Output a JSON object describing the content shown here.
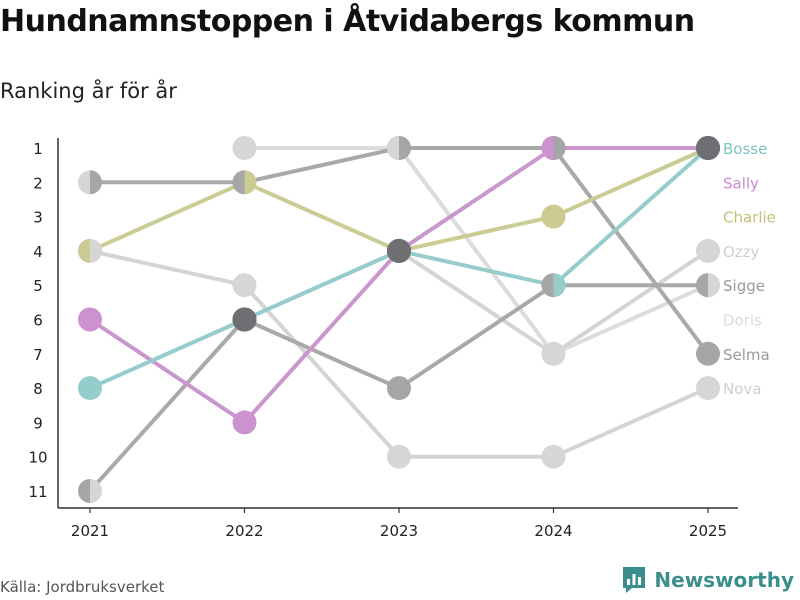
{
  "title": "Hundnamnstoppen i Åtvidabergs kommun",
  "subtitle": "Ranking år för år",
  "source": "Källa: Jordbruksverket",
  "brand": {
    "name": "Newsworthy",
    "icon": "newsworthy-logo-icon",
    "color": "#3a8f8c"
  },
  "chart_data": {
    "type": "line",
    "subtype": "bump",
    "title": "Hundnamnstoppen i Åtvidabergs kommun",
    "subtitle": "Ranking år för år",
    "x": [
      "2021",
      "2022",
      "2023",
      "2024",
      "2025"
    ],
    "y_ticks": [
      "1",
      "2",
      "3",
      "4",
      "5",
      "6",
      "7",
      "8",
      "9",
      "10",
      "11"
    ],
    "y_range": [
      1,
      11
    ],
    "y_inverted": true,
    "grid": false,
    "series": [
      {
        "name": "Nova",
        "color": "#d4d4d4",
        "ranks": [
          4,
          5,
          10,
          10,
          8
        ],
        "markers": [
          "split-lightgray-lightgray",
          "lightgray",
          "lightgray",
          "lightgray",
          "lightgray"
        ]
      },
      {
        "name": "Doris",
        "color": "#dcdcdc",
        "ranks": [
          null,
          1,
          1,
          7,
          5
        ],
        "markers": [
          null,
          "lightgray",
          "split-midgray-lightgray",
          "lightgray",
          "split-midgray-lightgray"
        ]
      },
      {
        "name": "Ozzy",
        "color": "#d4d4d4",
        "ranks": [
          null,
          6,
          4,
          7,
          4
        ],
        "markers": [
          null,
          "darkgray",
          "darkgray",
          "lightgray",
          "lightgray"
        ]
      },
      {
        "name": "Sigge",
        "color": "#a9a9a9",
        "ranks": [
          11,
          6,
          8,
          5,
          5
        ],
        "markers": [
          "split-midgray-lightgray",
          "darkgray",
          "midgray",
          "split-midgray-teal",
          "split-midgray-lightgray"
        ]
      },
      {
        "name": "Selma",
        "color": "#a9a9a9",
        "ranks": [
          2,
          2,
          1,
          1,
          7
        ],
        "markers": [
          "split-lightgray-midgray",
          "split-midgray-olive",
          "split-lightgray-midgray",
          "split-pink-midgray",
          "midgray"
        ]
      },
      {
        "name": "Charlie",
        "color": "#cacc94",
        "ranks": [
          4,
          2,
          4,
          3,
          1
        ],
        "markers": [
          "split-olive-lightgray",
          "split-midgray-olive",
          "darkgray",
          "olive",
          "darkgray"
        ]
      },
      {
        "name": "Sally",
        "color": "#c996ce",
        "ranks": [
          6,
          9,
          4,
          1,
          1
        ],
        "markers": [
          "pink",
          "pink",
          "darkgray",
          "split-pink-midgray",
          "darkgray"
        ]
      },
      {
        "name": "Bosse",
        "color": "#96cdcc",
        "ranks": [
          8,
          6,
          4,
          5,
          1
        ],
        "markers": [
          "teal",
          "darkgray",
          "darkgray",
          "split-midgray-teal",
          "darkgray"
        ]
      }
    ],
    "end_labels": [
      {
        "name": "Bosse",
        "rank": 1,
        "color": "#7fc4c3"
      },
      {
        "name": "Sally",
        "rank": 2,
        "color": "#c98bd0"
      },
      {
        "name": "Charlie",
        "rank": 3,
        "color": "#c2c27a"
      },
      {
        "name": "Ozzy",
        "rank": 4,
        "color": "#cfcfcf"
      },
      {
        "name": "Sigge",
        "rank": 5,
        "color": "#9a9a9a"
      },
      {
        "name": "Doris",
        "rank": 6,
        "color": "#dadada"
      },
      {
        "name": "Selma",
        "rank": 7,
        "color": "#9a9a9a"
      },
      {
        "name": "Nova",
        "rank": 8,
        "color": "#cfcfcf"
      }
    ],
    "palette": {
      "lightgray": "#d6d6d6",
      "midgray": "#a6a6a6",
      "darkgray": "#6e6e73",
      "olive": "#cbcb93",
      "pink": "#cc92d0",
      "teal": "#94cdcc",
      "axis": "#333333"
    }
  }
}
